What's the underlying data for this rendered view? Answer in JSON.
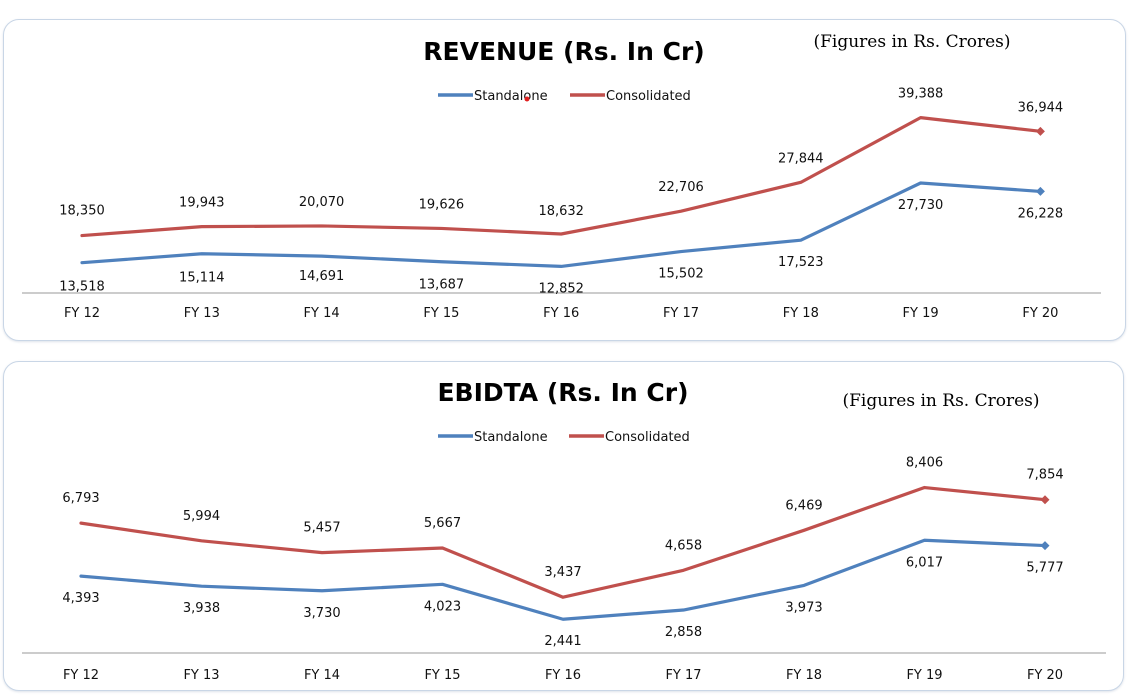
{
  "chart_data": [
    {
      "type": "line",
      "title": "REVENUE (Rs. In Cr)",
      "note": "(Figures in Rs. Crores)",
      "categories": [
        "FY 12",
        "FY 13",
        "FY 14",
        "FY 15",
        "FY 16",
        "FY 17",
        "FY 18",
        "FY 19",
        "FY 20"
      ],
      "series": [
        {
          "name": "Standalone",
          "color": "#4f81bd",
          "values": [
            13518,
            15114,
            14691,
            13687,
            12852,
            15502,
            17523,
            27730,
            26228
          ],
          "labels": [
            "13,518",
            "15,114",
            "14,691",
            "13,687",
            "12,852",
            "15,502",
            "17,523",
            "27,730",
            "26,228"
          ]
        },
        {
          "name": "Consolidated",
          "color": "#c0504d",
          "values": [
            18350,
            19943,
            20070,
            19626,
            18632,
            22706,
            27844,
            39388,
            36944
          ],
          "labels": [
            "18,350",
            "19,943",
            "20,070",
            "19,626",
            "18,632",
            "22,706",
            "27,844",
            "39,388",
            "36,944"
          ]
        }
      ],
      "ylim": [
        0,
        45000
      ],
      "legend": "top-center"
    },
    {
      "type": "line",
      "title": "EBIDTA (Rs. In Cr)",
      "note": "(Figures in Rs. Crores)",
      "categories": [
        "FY 12",
        "FY 13",
        "FY 14",
        "FY 15",
        "FY 16",
        "FY 17",
        "FY 18",
        "FY 19",
        "FY 20"
      ],
      "series": [
        {
          "name": "Standalone",
          "color": "#4f81bd",
          "values": [
            4393,
            3938,
            3730,
            4023,
            2441,
            2858,
            3973,
            6017,
            5777
          ],
          "labels": [
            "4,393",
            "3,938",
            "3,730",
            "4,023",
            "2,441",
            "2,858",
            "3,973",
            "6,017",
            "5,777"
          ]
        },
        {
          "name": "Consolidated",
          "color": "#c0504d",
          "values": [
            6793,
            5994,
            5457,
            5667,
            3437,
            4658,
            6469,
            8406,
            7854
          ],
          "labels": [
            "6,793",
            "5,994",
            "5,457",
            "5,667",
            "3,437",
            "4,658",
            "6,469",
            "8,406",
            "7,854"
          ]
        }
      ],
      "ylim": [
        0,
        9500
      ],
      "legend": "top-center"
    }
  ]
}
